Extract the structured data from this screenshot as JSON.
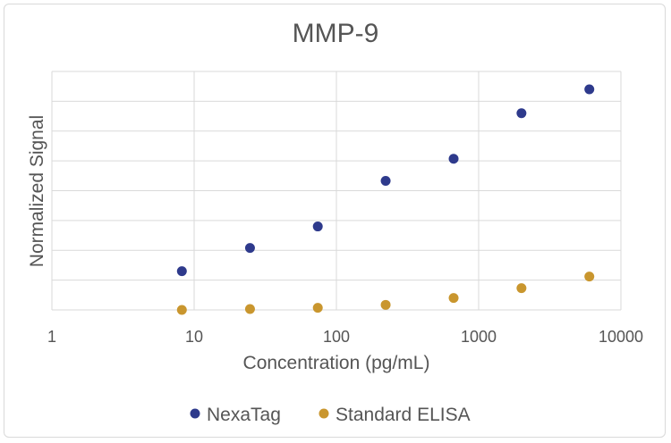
{
  "chart_data": {
    "type": "scatter",
    "title": "MMP-9",
    "xlabel": "Concentration (pg/mL)",
    "ylabel": "Normalized Signal",
    "x_scale": "log",
    "xlim": [
      1,
      10000
    ],
    "x_ticks": [
      "1",
      "10",
      "100",
      "1000",
      "10000"
    ],
    "ylim": [
      0,
      8
    ],
    "y_tick_labels_shown": false,
    "grid": true,
    "legend_position": "bottom",
    "series": [
      {
        "name": "NexaTag",
        "color": "#2e3a8c",
        "x": [
          8.2,
          24.7,
          74,
          222,
          667,
          2000,
          6000
        ],
        "y": [
          1.3,
          2.08,
          2.8,
          4.33,
          5.07,
          6.6,
          7.4
        ]
      },
      {
        "name": "Standard ELISA",
        "color": "#c9962e",
        "x": [
          8.2,
          24.7,
          74,
          222,
          667,
          2000,
          6000
        ],
        "y": [
          0.0,
          0.03,
          0.07,
          0.17,
          0.4,
          0.73,
          1.12
        ]
      }
    ]
  }
}
